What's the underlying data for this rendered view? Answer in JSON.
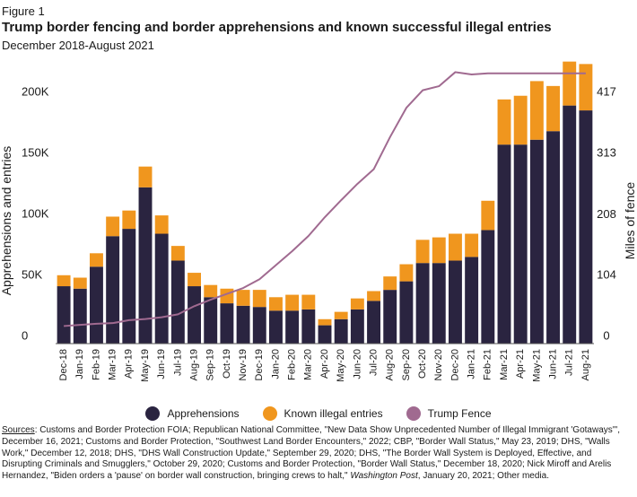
{
  "figure_label": "Figure 1",
  "title": "Trump border fencing and border apprehensions and known successful illegal entries",
  "subtitle": "December 2018-August 2021",
  "chart_data": {
    "type": "bar",
    "stacked": true,
    "categories": [
      "Dec-18",
      "Jan-19",
      "Feb-19",
      "Mar-19",
      "Apr-19",
      "May-19",
      "Jun-19",
      "Jul-19",
      "Aug-19",
      "Sep-19",
      "Oct-19",
      "Nov-19",
      "Dec-19",
      "Jan-20",
      "Feb-20",
      "Mar-20",
      "Apr-20",
      "May-20",
      "Jun-20",
      "Jul-20",
      "Aug-20",
      "Sep-20",
      "Oct-20",
      "Nov-20",
      "Dec-20",
      "Jan-21",
      "Feb-21",
      "Mar-21",
      "Apr-21",
      "May-21",
      "Jun-21",
      "Jul-21",
      "Aug-21"
    ],
    "series": [
      {
        "name": "Apprehensions",
        "color": "#2a2440",
        "values": [
          47000,
          45000,
          63000,
          88000,
          94000,
          128000,
          90000,
          68000,
          47000,
          38000,
          33000,
          31000,
          30000,
          27000,
          27000,
          28000,
          15000,
          20000,
          28000,
          35000,
          44000,
          51000,
          66000,
          66000,
          68000,
          71000,
          93000,
          163000,
          163000,
          167000,
          174000,
          195000,
          191000
        ]
      },
      {
        "name": "Known illegal entries",
        "color": "#f0961e",
        "values": [
          9000,
          9000,
          11000,
          16000,
          15000,
          17000,
          15000,
          12000,
          11000,
          10000,
          12000,
          13000,
          14000,
          11000,
          13000,
          12000,
          5000,
          6000,
          9000,
          8000,
          11000,
          14000,
          19000,
          21000,
          22000,
          19000,
          24000,
          37000,
          40000,
          48000,
          37000,
          36000,
          38000
        ]
      }
    ],
    "line_series": {
      "name": "Trump Fence",
      "color": "#a06a90",
      "axis": "right",
      "values": [
        30,
        32,
        34,
        35,
        40,
        42,
        45,
        50,
        64,
        75,
        85,
        95,
        110,
        134,
        158,
        184,
        216,
        245,
        273,
        298,
        353,
        403,
        433,
        440,
        464,
        460,
        462,
        462,
        462,
        462,
        462,
        462,
        462
      ]
    },
    "ylabel": "Apprehensions and entries",
    "ylim": [
      0,
      230000
    ],
    "yticks": [
      0,
      50000,
      100000,
      150000,
      200000
    ],
    "ytick_labels": [
      "0",
      "50K",
      "100K",
      "150K",
      "200K"
    ],
    "y2label": "Miles of fence",
    "y2lim": [
      0,
      480
    ],
    "y2ticks": [
      0,
      104,
      208,
      313,
      417
    ],
    "y2tick_labels": [
      "0",
      "104",
      "208",
      "313",
      "417"
    ],
    "grid": false,
    "legend_position": "bottom"
  },
  "sources": {
    "label": "Sources",
    "text1": ": Customs and Border Protection FOIA; Republican National Committee, \"New Data Show Unprecedented Number of Illegal Immigrant 'Gotaways'\", December 16, 2021; Customs and Border Protection, \"Southwest Land Border Encounters,\" 2022; CBP, \"Border Wall Status,\" May 23, 2019; DHS, \"Walls Work,\" December 12, 2018; DHS, \"DHS Wall Construction Update,\" September 29, 2020; DHS, \"The Border Wall System is Deployed, Effective, and Disrupting Criminals and Smugglers,\" October 29, 2020; Customs and Border Protection, \"Border Wall Status,\" December 18, 2020; Nick Miroff and Arelis Hernandez, \"Biden orders a 'pause' on border wall construction, bringing crews to halt,\" ",
    "italic": "Washington Post",
    "text2": ", January 20, 2021; Other media."
  }
}
